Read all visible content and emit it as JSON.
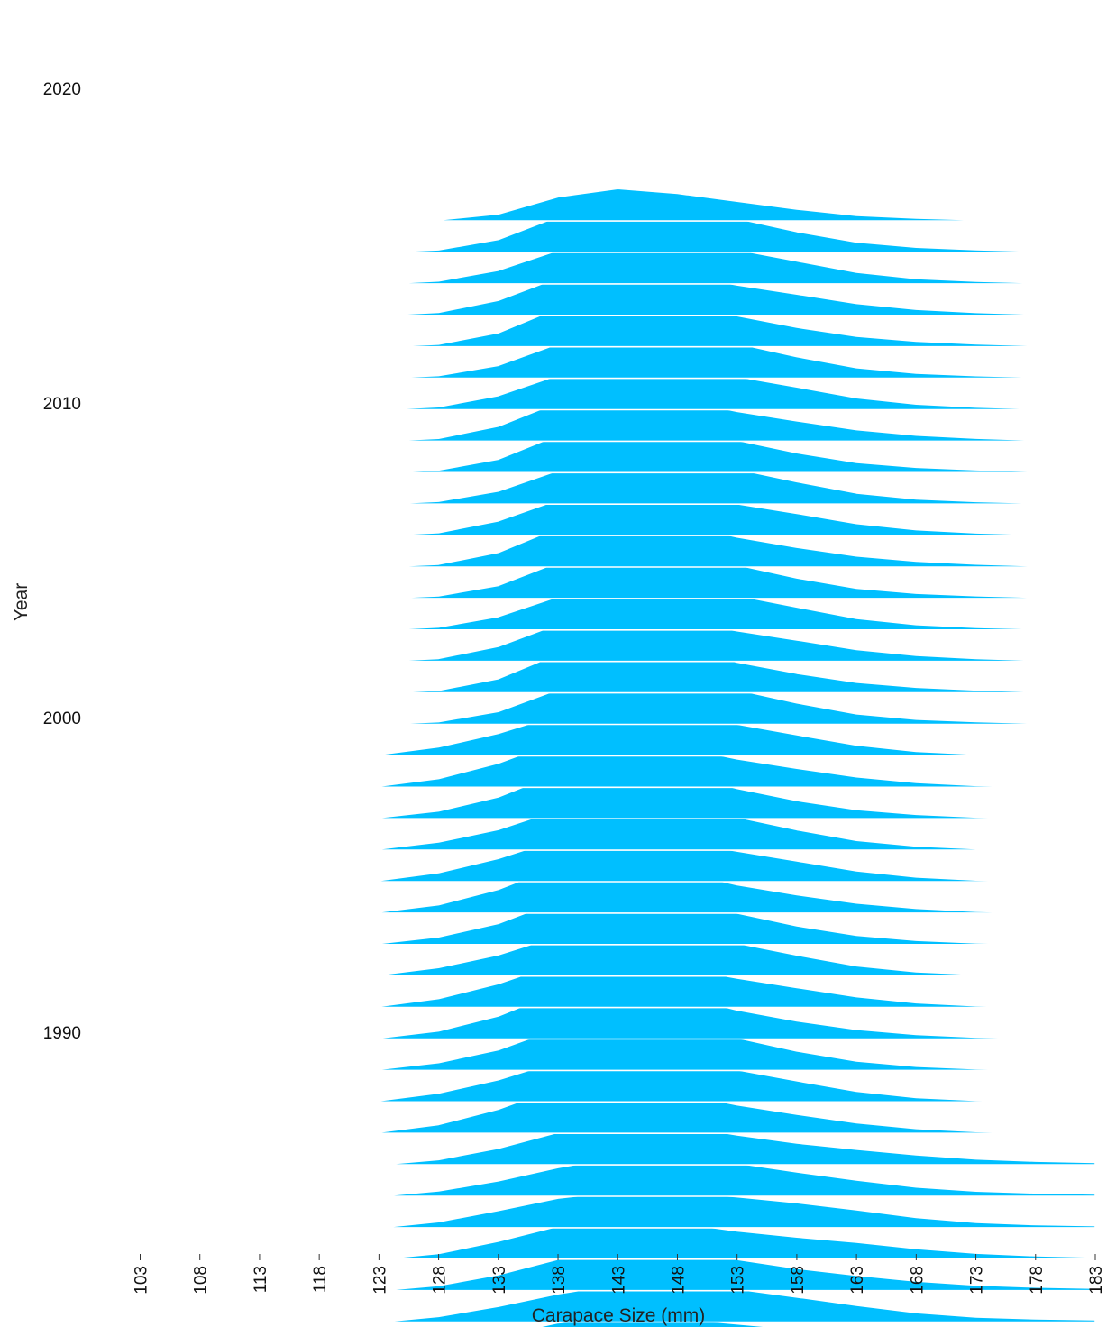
{
  "chart_data": {
    "type": "area",
    "subtype": "ridgeline",
    "title": "",
    "xlabel": "Carapace Size (mm)",
    "ylabel": "Year",
    "fill_color": "#00BFFF",
    "outline_color": "#FFFFFF",
    "grid": false,
    "legend": "none",
    "x_ticks": [
      103,
      108,
      113,
      118,
      123,
      128,
      133,
      138,
      143,
      148,
      153,
      158,
      163,
      168,
      173,
      178,
      183
    ],
    "y_ticks": [
      1990,
      2000,
      2010,
      2020
    ],
    "year_range": [
      1985,
      2021
    ],
    "x": [
      123,
      128,
      133,
      138,
      143,
      148,
      153,
      158,
      163,
      168,
      173,
      178,
      183
    ],
    "profiles": {
      "late": [
        0.0,
        0.05,
        0.25,
        0.65,
        0.88,
        0.8,
        0.58,
        0.38,
        0.2,
        0.1,
        0.05,
        0.02,
        0.0
      ],
      "mid": [
        0.02,
        0.15,
        0.4,
        0.78,
        0.93,
        0.78,
        0.55,
        0.35,
        0.18,
        0.08,
        0.03,
        0.01,
        0.0
      ],
      "early": [
        0.0,
        0.1,
        0.3,
        0.55,
        0.7,
        0.68,
        0.55,
        0.42,
        0.3,
        0.18,
        0.1,
        0.06,
        0.04
      ]
    },
    "top_year_profile": [
      0.0,
      0.02,
      0.12,
      0.4,
      0.55,
      0.5,
      0.38,
      0.23,
      0.1,
      0.05,
      0.02,
      0.0,
      0.0
    ]
  }
}
